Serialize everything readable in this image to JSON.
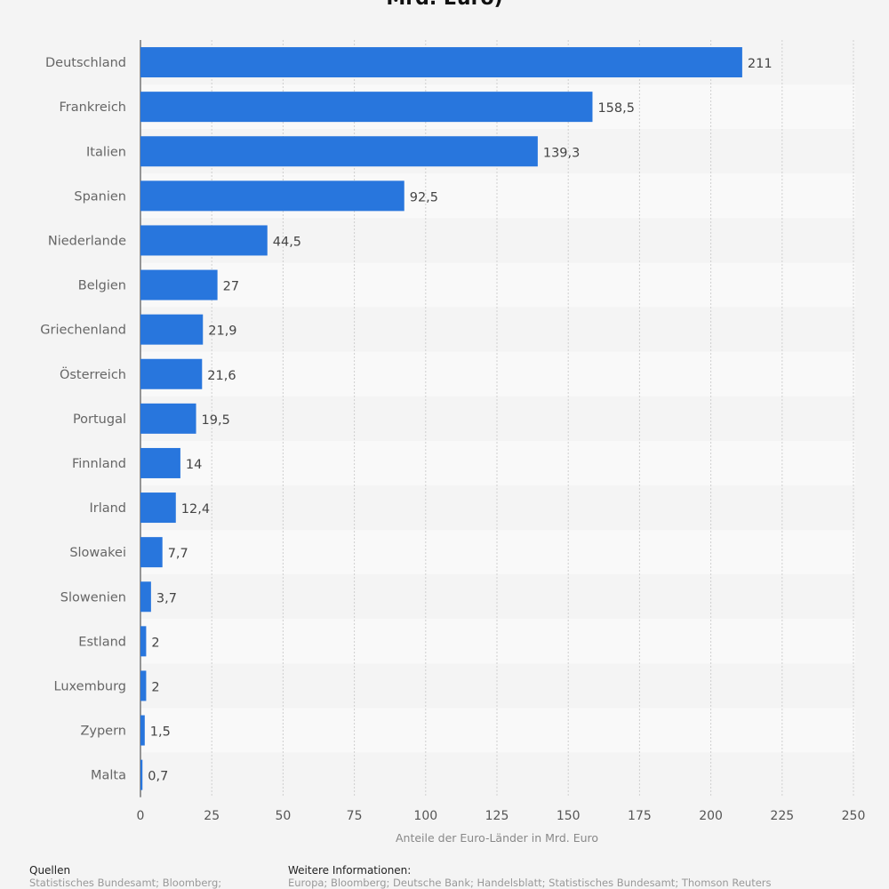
{
  "chart_data": {
    "type": "bar",
    "orientation": "horizontal",
    "title": "Mrd. Euro)",
    "categories": [
      "Deutschland",
      "Frankreich",
      "Italien",
      "Spanien",
      "Niederlande",
      "Belgien",
      "Griechenland",
      "Österreich",
      "Portugal",
      "Finnland",
      "Irland",
      "Slowakei",
      "Slowenien",
      "Estland",
      "Luxemburg",
      "Zypern",
      "Malta"
    ],
    "values": [
      211,
      158.5,
      139.3,
      92.5,
      44.5,
      27,
      21.9,
      21.6,
      19.5,
      14,
      12.4,
      7.7,
      3.7,
      2,
      2,
      1.5,
      0.7
    ],
    "value_labels": [
      "211",
      "158,5",
      "139,3",
      "92,5",
      "44,5",
      "27",
      "21,9",
      "21,6",
      "19,5",
      "14",
      "12,4",
      "7,7",
      "3,7",
      "2",
      "2",
      "1,5",
      "0,7"
    ],
    "xlabel": "Anteile der Euro-Länder in Mrd. Euro",
    "xlim": [
      0,
      250
    ],
    "xticks": [
      "0",
      "25",
      "50",
      "75",
      "100",
      "125",
      "150",
      "175",
      "200",
      "225",
      "250"
    ],
    "grid": true,
    "bar_color": "#2876dd"
  },
  "footer": {
    "sources_heading": "Quellen",
    "sources_text": "Statistisches Bundesamt; Bloomberg;",
    "info_heading": "Weitere Informationen:",
    "info_text": "Europa; Bloomberg; Deutsche Bank; Handelsblatt; Statistisches Bundesamt; Thomson Reuters"
  }
}
